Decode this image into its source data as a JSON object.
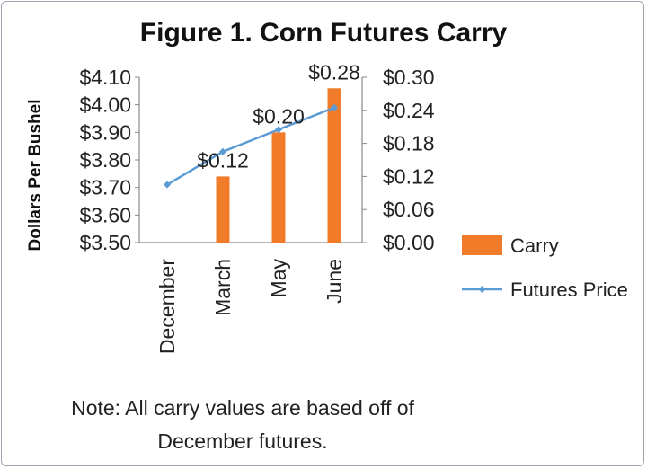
{
  "chart_data": {
    "type": "bar",
    "title": "Figure 1.  Corn Futures Carry",
    "ylabel": "Dollars Per Bushel",
    "categories": [
      "December",
      "March",
      "May",
      "June"
    ],
    "series": [
      {
        "name": "Carry",
        "kind": "bar",
        "axis": "right",
        "values": [
          0.0,
          0.12,
          0.2,
          0.28
        ],
        "color": "#f07c2a"
      },
      {
        "name": "Futures Price",
        "kind": "line",
        "axis": "left",
        "values": [
          3.71,
          3.83,
          3.91,
          3.99
        ],
        "color": "#5b9bd5"
      }
    ],
    "y_left": {
      "range": [
        3.5,
        4.1
      ],
      "ticks": [
        "$3.50",
        "$3.60",
        "$3.70",
        "$3.80",
        "$3.90",
        "$4.00",
        "$4.10"
      ]
    },
    "y_right": {
      "range": [
        0.0,
        0.3
      ],
      "ticks": [
        "$0.00",
        "$0.06",
        "$0.12",
        "$0.18",
        "$0.24",
        "$0.30"
      ]
    },
    "data_labels": [
      "",
      "$0.12",
      "$0.20",
      "$0.28"
    ],
    "legend_position": "right",
    "grid": false
  },
  "note": {
    "line1": "Note: All carry values are based off of",
    "line2": "December futures."
  }
}
